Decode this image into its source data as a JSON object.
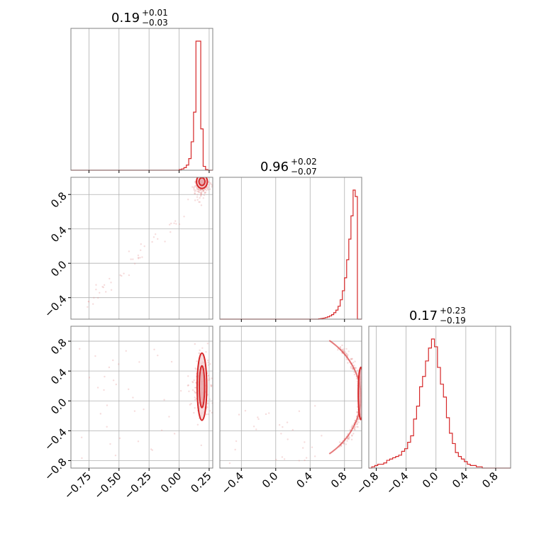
{
  "chart_data": {
    "type": "corner",
    "color": "#d62728",
    "grid": true,
    "params": [
      {
        "range": [
          -0.9,
          0.28
        ],
        "ticks": [
          -0.75,
          -0.5,
          -0.25,
          0.0,
          0.25
        ],
        "tick_labels": [
          "−0.75",
          "−0.50",
          "−0.25",
          "0.00",
          "0.25"
        ]
      },
      {
        "range": [
          -0.65,
          1.0
        ],
        "ticks": [
          -0.4,
          0.0,
          0.4,
          0.8
        ],
        "tick_labels": [
          "−0.4",
          "0.0",
          "0.4",
          "0.8"
        ]
      },
      {
        "range": [
          -0.9,
          1.0
        ],
        "ticks": [
          -0.8,
          -0.4,
          0.0,
          0.4,
          0.8
        ],
        "tick_labels": [
          "−0.8",
          "−0.4",
          "0.0",
          "0.4",
          "0.8"
        ]
      }
    ],
    "titles": [
      {
        "median": "0.19",
        "plus": "+0.01",
        "minus": "−0.03"
      },
      {
        "median": "0.96",
        "plus": "+0.02",
        "minus": "−0.07"
      },
      {
        "median": "0.17",
        "plus": "+0.23",
        "minus": "−0.19"
      }
    ],
    "histograms": [
      {
        "bin_start": 0.0,
        "bin_width": 0.02,
        "counts": [
          0.5,
          1,
          2,
          4,
          9,
          22,
          45,
          100,
          100,
          32,
          3,
          0.5,
          0
        ]
      },
      {
        "bin_start": 0.5,
        "bin_width": 0.025,
        "counts": [
          0.3,
          0.5,
          0.8,
          1.2,
          1.8,
          2.5,
          3.5,
          5,
          7,
          10,
          15,
          22,
          32,
          46,
          62,
          80,
          100,
          95,
          0
        ]
      },
      {
        "bin_start": -0.9,
        "bin_width": 0.04,
        "counts": [
          0,
          1,
          2,
          3,
          3,
          4,
          6,
          7,
          8,
          9,
          10,
          13,
          15,
          20,
          25,
          38,
          48,
          63,
          71,
          83,
          93,
          100,
          94,
          78,
          65,
          55,
          39,
          27,
          19,
          12,
          9,
          7,
          5,
          3,
          2,
          2,
          1,
          1,
          0,
          0,
          0,
          0,
          0,
          0,
          0,
          0,
          0
        ]
      }
    ]
  }
}
